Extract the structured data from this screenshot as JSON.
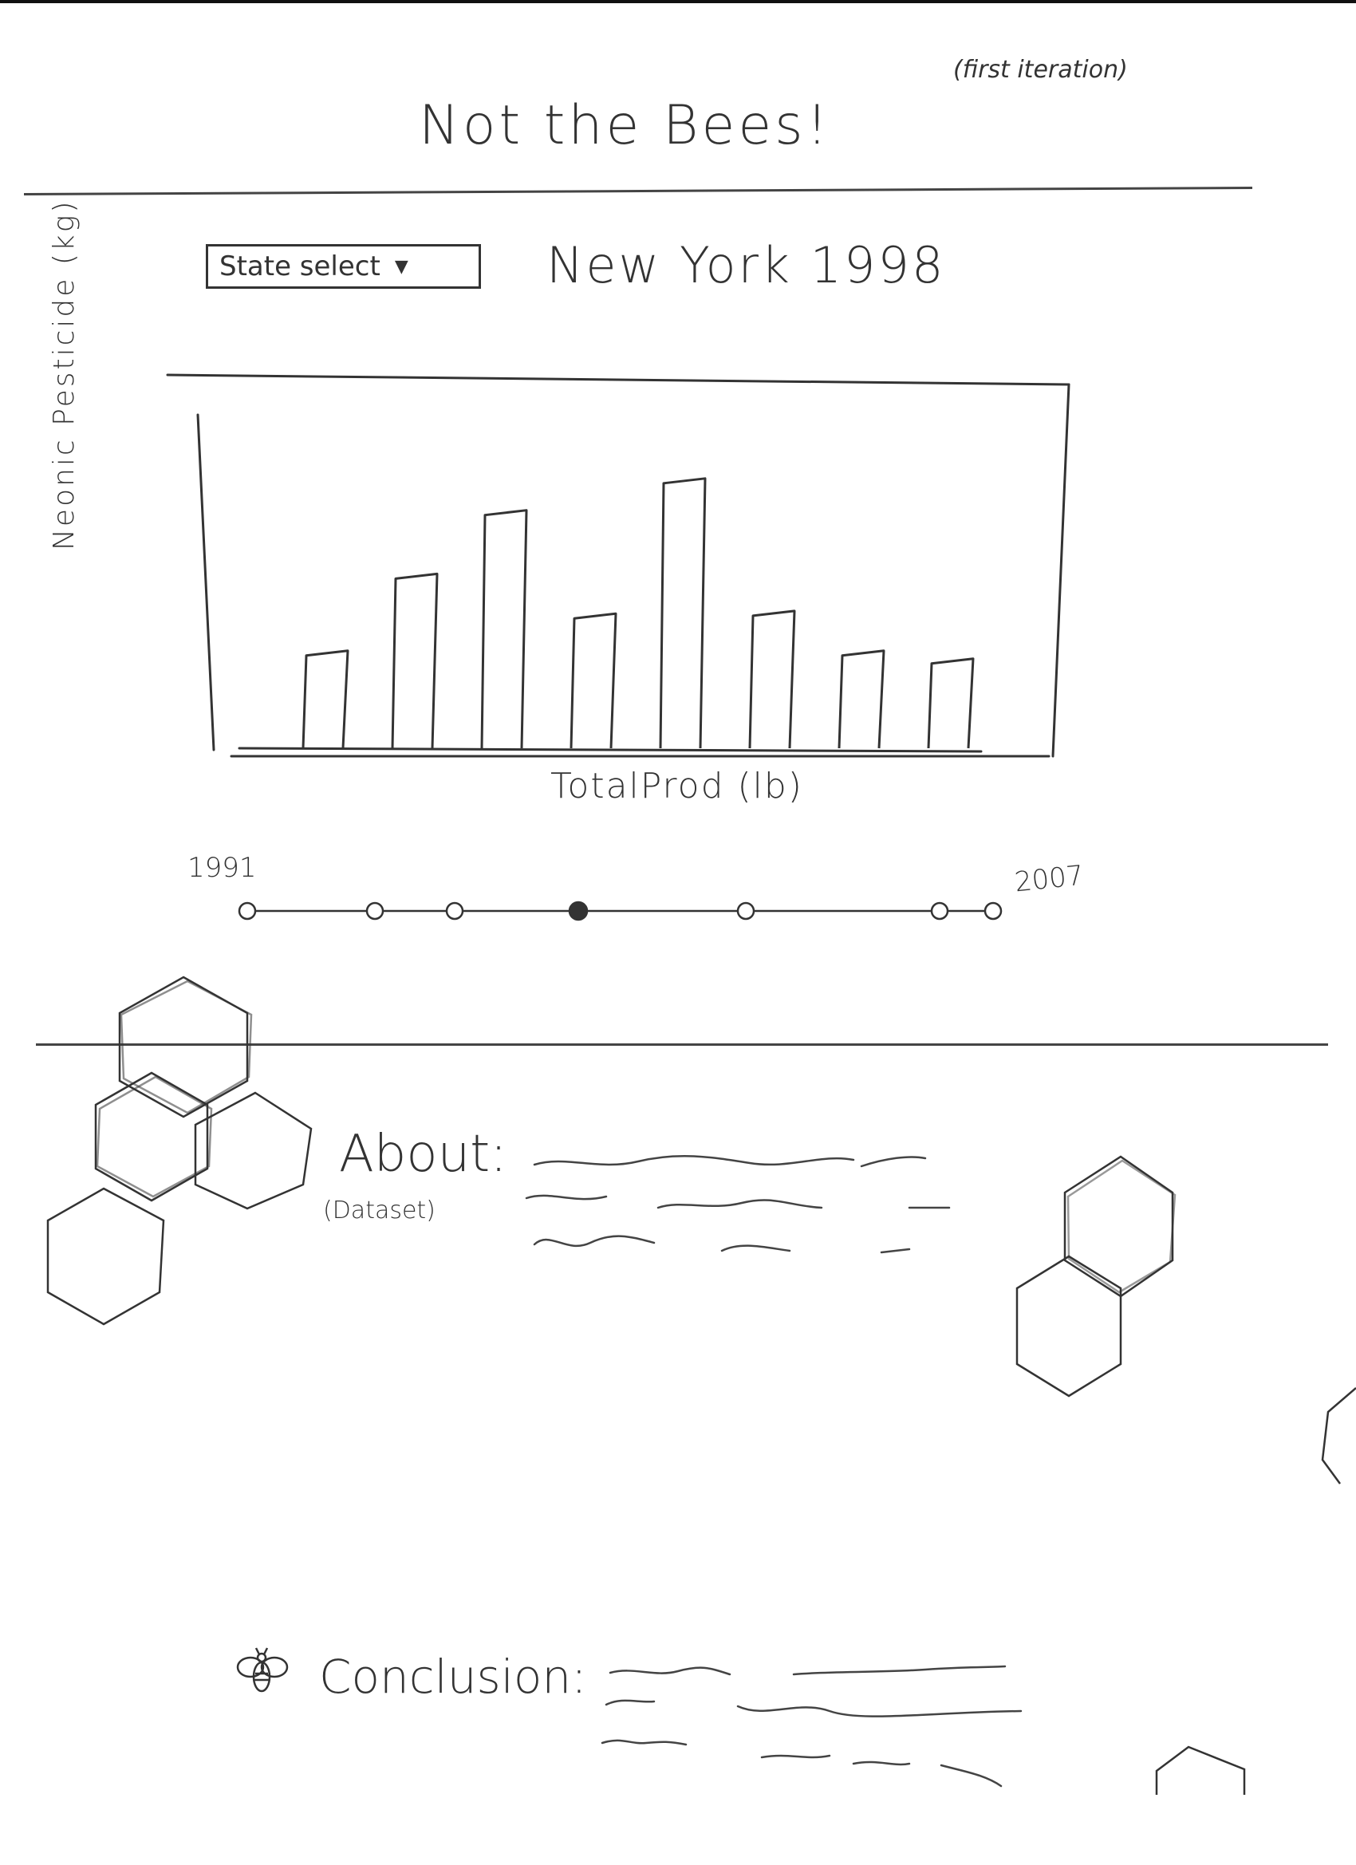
{
  "page": {
    "title": "Not the Bees!",
    "note": "(first iteration)"
  },
  "controls": {
    "state_select_label": "State select",
    "selected_heading": "New York 1998"
  },
  "chart_data": {
    "type": "bar",
    "xlabel": "TotalProd (lb)",
    "ylabel": "Neonic Pesticide (kg)",
    "values": [
      3.5,
      6.4,
      8.8,
      4.9,
      10.0,
      5.0,
      3.5,
      3.2
    ],
    "ylim": [
      0,
      11
    ],
    "grid": false,
    "legend": "none"
  },
  "timeline": {
    "start_label": "1991",
    "end_label": "2007",
    "stops": 7,
    "selected_index": 3
  },
  "sections": {
    "about_heading": "About:",
    "about_sub": "(Dataset)",
    "conclusion_heading": "Conclusion:"
  },
  "icons": {
    "selector_arrow": "chevron-down-icon",
    "section_marker": "bee-icon",
    "decoration": "honeycomb-icon"
  },
  "colors": {
    "ink": "#333333",
    "paper": "#ffffff"
  }
}
